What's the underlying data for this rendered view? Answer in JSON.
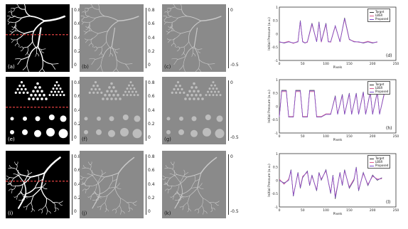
{
  "rows": [
    {
      "id": "row1",
      "panels": [
        {
          "label": "(a)",
          "kind": "binary-vessel"
        },
        {
          "label": "(b)",
          "kind": "grey-vessel"
        },
        {
          "label": "(c)",
          "kind": "grey-vessel"
        }
      ],
      "colorbar_ticks": [
        "0.8",
        "0.6",
        "0.4",
        "0.2",
        "0"
      ],
      "colorbar_ticks_right": [
        "0",
        "-0.5"
      ],
      "chart_label": "(d)"
    },
    {
      "id": "row2",
      "panels": [
        {
          "label": "(e)",
          "kind": "binary-dots"
        },
        {
          "label": "(f)",
          "kind": "grey-dots"
        },
        {
          "label": "(g)",
          "kind": "grey-dots"
        }
      ],
      "colorbar_ticks": [
        "0.8",
        "0.6",
        "0.4",
        "0.2",
        "0"
      ],
      "colorbar_ticks_right": [
        "0",
        "-0.5"
      ],
      "chart_label": "(h)"
    },
    {
      "id": "row3",
      "panels": [
        {
          "label": "(i)",
          "kind": "binary-vessel"
        },
        {
          "label": "(j)",
          "kind": "grey-vessel"
        },
        {
          "label": "(k)",
          "kind": "grey-vessel"
        }
      ],
      "colorbar_ticks": [
        "0.8",
        "0.6",
        "0.4",
        "0.2",
        "0"
      ],
      "colorbar_ticks_right": [
        "0",
        "-0.5"
      ],
      "chart_label": "(l)"
    }
  ],
  "legend": [
    "Target",
    "LBSR",
    "Proposed"
  ],
  "chart_axis": {
    "ylabel": "Initial Pressure (a.u.)",
    "xlabel": "Pixels",
    "yticks": [
      "1",
      "0.5",
      "0",
      "-0.5",
      "-1"
    ],
    "xticks": [
      "0",
      "50",
      "100",
      "150",
      "200",
      "250"
    ]
  },
  "colors": {
    "target": "#333333",
    "lbsr": "#e05a8c",
    "proposed": "#7a4ad0",
    "panel_grey": "#8a8a8a",
    "dashed_line": "#e04040"
  },
  "chart_data": [
    {
      "type": "line",
      "title": "",
      "xlabel": "Pixels",
      "ylabel": "Initial Pressure (a.u.)",
      "xlim": [
        0,
        250
      ],
      "ylim": [
        -1,
        1
      ],
      "series": [
        {
          "name": "Target",
          "x": [
            0,
            10,
            20,
            30,
            40,
            45,
            50,
            55,
            60,
            70,
            80,
            85,
            90,
            100,
            105,
            110,
            120,
            130,
            140,
            150,
            160,
            170,
            180,
            190,
            200,
            210
          ],
          "values": [
            -0.3,
            -0.35,
            -0.3,
            -0.35,
            -0.3,
            0.5,
            -0.3,
            -0.35,
            -0.3,
            0.4,
            -0.3,
            0.45,
            -0.3,
            0.4,
            -0.3,
            -0.3,
            0.3,
            -0.3,
            0.6,
            -0.2,
            -0.3,
            -0.3,
            -0.35,
            -0.3,
            -0.35,
            -0.3
          ]
        },
        {
          "name": "LBSR",
          "x": [
            0,
            10,
            20,
            30,
            40,
            45,
            50,
            55,
            60,
            70,
            80,
            85,
            90,
            100,
            105,
            110,
            120,
            130,
            140,
            150,
            160,
            170,
            180,
            190,
            200,
            210
          ],
          "values": [
            -0.32,
            -0.33,
            -0.28,
            -0.36,
            -0.28,
            0.45,
            -0.28,
            -0.34,
            -0.32,
            0.35,
            -0.28,
            0.4,
            -0.32,
            0.35,
            -0.28,
            -0.32,
            0.28,
            -0.28,
            0.55,
            -0.22,
            -0.28,
            -0.32,
            -0.33,
            -0.28,
            -0.33,
            -0.32
          ]
        },
        {
          "name": "Proposed",
          "x": [
            0,
            10,
            20,
            30,
            40,
            45,
            50,
            55,
            60,
            70,
            80,
            85,
            90,
            100,
            105,
            110,
            120,
            130,
            140,
            150,
            160,
            170,
            180,
            190,
            200,
            210
          ],
          "values": [
            -0.3,
            -0.34,
            -0.3,
            -0.34,
            -0.3,
            0.48,
            -0.3,
            -0.34,
            -0.3,
            0.38,
            -0.3,
            0.43,
            -0.3,
            0.38,
            -0.3,
            -0.3,
            0.3,
            -0.3,
            0.58,
            -0.21,
            -0.3,
            -0.3,
            -0.34,
            -0.3,
            -0.34,
            -0.3
          ]
        }
      ],
      "legend": "top-right",
      "grid": false
    },
    {
      "type": "line",
      "title": "",
      "xlabel": "Pixels",
      "ylabel": "Initial Pressure (a.u.)",
      "xlim": [
        0,
        250
      ],
      "ylim": [
        -1,
        1
      ],
      "series": [
        {
          "name": "Target",
          "x": [
            0,
            5,
            15,
            20,
            30,
            35,
            45,
            50,
            60,
            65,
            75,
            80,
            90,
            100,
            110,
            120,
            125,
            135,
            140,
            150,
            155,
            165,
            170,
            180,
            185,
            195,
            200,
            210,
            215,
            225
          ],
          "values": [
            -0.4,
            0.6,
            0.6,
            -0.4,
            -0.4,
            0.6,
            0.6,
            -0.4,
            -0.4,
            0.6,
            0.6,
            -0.4,
            -0.4,
            -0.3,
            -0.3,
            0.4,
            -0.3,
            0.45,
            -0.3,
            0.5,
            -0.3,
            0.5,
            -0.3,
            0.55,
            -0.3,
            0.55,
            -0.3,
            0.55,
            -0.3,
            0.5
          ]
        },
        {
          "name": "LBSR",
          "x": [
            0,
            5,
            15,
            20,
            30,
            35,
            45,
            50,
            60,
            65,
            75,
            80,
            90,
            100,
            110,
            120,
            125,
            135,
            140,
            150,
            155,
            165,
            170,
            180,
            185,
            195,
            200,
            210,
            215,
            225
          ],
          "values": [
            -0.38,
            0.55,
            0.55,
            -0.38,
            -0.38,
            0.55,
            0.55,
            -0.38,
            -0.38,
            0.55,
            0.55,
            -0.38,
            -0.38,
            -0.28,
            -0.28,
            0.35,
            -0.28,
            0.4,
            -0.28,
            0.45,
            -0.28,
            0.45,
            -0.28,
            0.5,
            -0.28,
            0.5,
            -0.28,
            0.5,
            -0.28,
            0.45
          ]
        },
        {
          "name": "Proposed",
          "x": [
            0,
            5,
            15,
            20,
            30,
            35,
            45,
            50,
            60,
            65,
            75,
            80,
            90,
            100,
            110,
            120,
            125,
            135,
            140,
            150,
            155,
            165,
            170,
            180,
            185,
            195,
            200,
            210,
            215,
            225
          ],
          "values": [
            -0.4,
            0.58,
            0.58,
            -0.4,
            -0.4,
            0.58,
            0.58,
            -0.4,
            -0.4,
            0.58,
            0.58,
            -0.4,
            -0.4,
            -0.3,
            -0.3,
            0.38,
            -0.3,
            0.43,
            -0.3,
            0.48,
            -0.3,
            0.48,
            -0.3,
            0.53,
            -0.3,
            0.53,
            -0.3,
            0.53,
            -0.3,
            0.48
          ]
        }
      ],
      "legend": "top-right",
      "grid": false
    },
    {
      "type": "line",
      "title": "",
      "xlabel": "Pixels",
      "ylabel": "Initial Pressure (a.u.)",
      "xlim": [
        0,
        250
      ],
      "ylim": [
        -1,
        1
      ],
      "series": [
        {
          "name": "Target",
          "x": [
            0,
            10,
            20,
            25,
            30,
            40,
            45,
            50,
            60,
            65,
            70,
            80,
            85,
            90,
            100,
            110,
            115,
            120,
            130,
            135,
            140,
            150,
            160,
            165,
            170,
            180,
            190,
            200,
            210,
            220
          ],
          "values": [
            0.0,
            -0.1,
            0.0,
            0.4,
            -0.6,
            0.3,
            -0.3,
            0.1,
            0.35,
            -0.2,
            0.2,
            -0.4,
            0.3,
            0.0,
            0.4,
            -0.5,
            0.2,
            -0.7,
            0.3,
            -0.2,
            0.4,
            -0.3,
            0.0,
            0.5,
            -0.4,
            0.3,
            -0.2,
            0.2,
            0.0,
            0.1
          ]
        },
        {
          "name": "LBSR",
          "x": [
            0,
            10,
            20,
            25,
            30,
            40,
            45,
            50,
            60,
            65,
            70,
            80,
            85,
            90,
            100,
            110,
            115,
            120,
            130,
            135,
            140,
            150,
            160,
            165,
            170,
            180,
            190,
            200,
            210,
            220
          ],
          "values": [
            0.05,
            -0.15,
            0.05,
            0.35,
            -0.55,
            0.25,
            -0.25,
            0.15,
            0.3,
            -0.15,
            0.15,
            -0.35,
            0.25,
            0.05,
            0.35,
            -0.45,
            0.15,
            -0.6,
            0.25,
            -0.15,
            0.35,
            -0.25,
            0.05,
            0.45,
            -0.35,
            0.25,
            -0.15,
            0.15,
            0.05,
            0.05
          ]
        },
        {
          "name": "Proposed",
          "x": [
            0,
            10,
            20,
            25,
            30,
            40,
            45,
            50,
            60,
            65,
            70,
            80,
            85,
            90,
            100,
            110,
            115,
            120,
            130,
            135,
            140,
            150,
            160,
            165,
            170,
            180,
            190,
            200,
            210,
            220
          ],
          "values": [
            0.0,
            -0.12,
            0.0,
            0.38,
            -0.58,
            0.28,
            -0.28,
            0.12,
            0.33,
            -0.18,
            0.18,
            -0.38,
            0.28,
            0.02,
            0.38,
            -0.48,
            0.18,
            -0.65,
            0.28,
            -0.18,
            0.38,
            -0.28,
            0.02,
            0.48,
            -0.38,
            0.28,
            -0.18,
            0.18,
            0.02,
            0.08
          ]
        }
      ],
      "legend": "top-right",
      "grid": false
    }
  ]
}
